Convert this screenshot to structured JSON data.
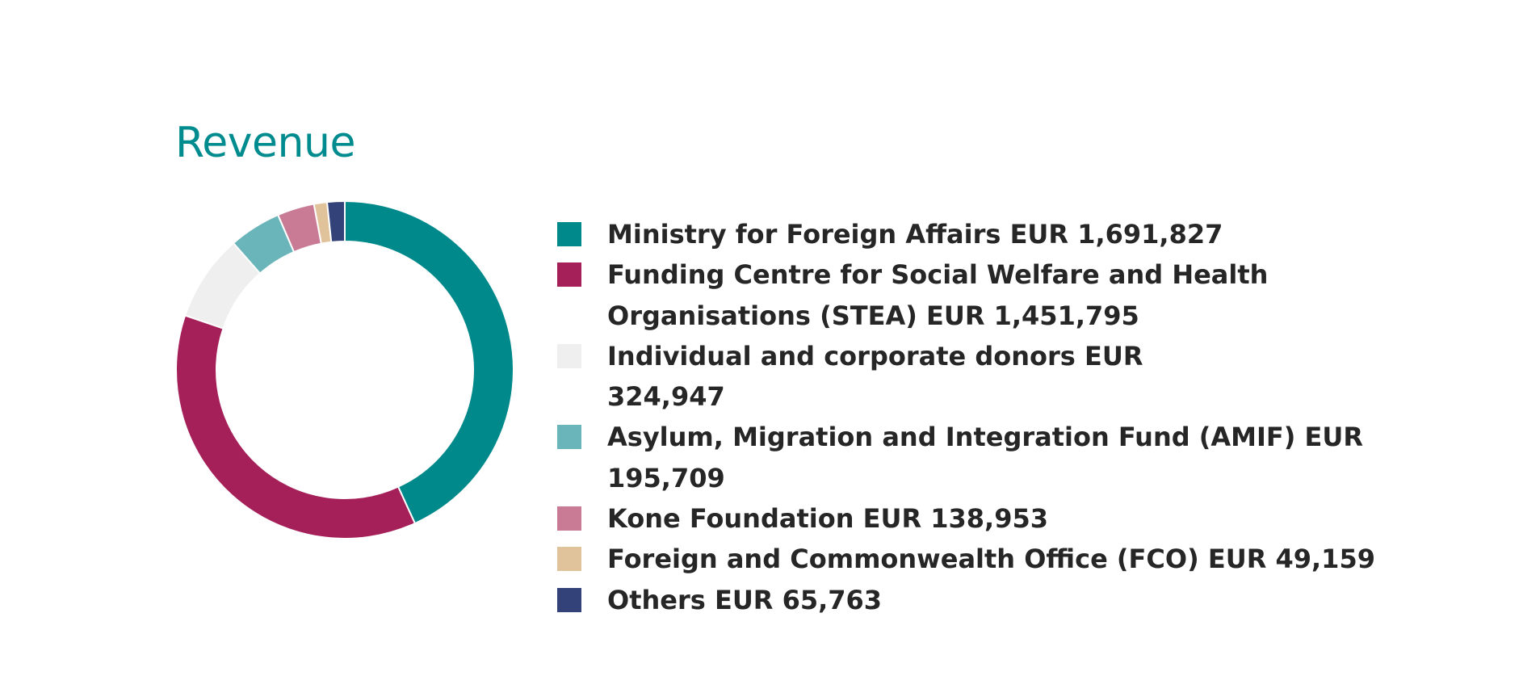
{
  "chart_data": {
    "type": "pie",
    "title": "Revenue",
    "labels": [
      "Ministry for Foreign Affairs EUR 1,691,827",
      "Funding Centre for Social Welfare and Health Organisations (STEA) EUR 1,451,795",
      "Individual and corporate donors EUR 324,947",
      "Asylum, Migration and Integration Fund (AMIF) EUR 195,709",
      "Kone Foundation EUR 138,953",
      "Foreign and Commonwealth Office (FCO) EUR 49,159",
      "Others EUR 65,763"
    ],
    "values": [
      1691827,
      1451795,
      324947,
      195709,
      138953,
      49159,
      65763
    ],
    "colors": [
      "#00898b",
      "#a51f59",
      "#efefef",
      "#69b5b9",
      "#c97b95",
      "#e0c39b",
      "#33437a"
    ],
    "donut": true,
    "legend_position": "right"
  },
  "theme": {
    "title_color": "#008c8e"
  }
}
